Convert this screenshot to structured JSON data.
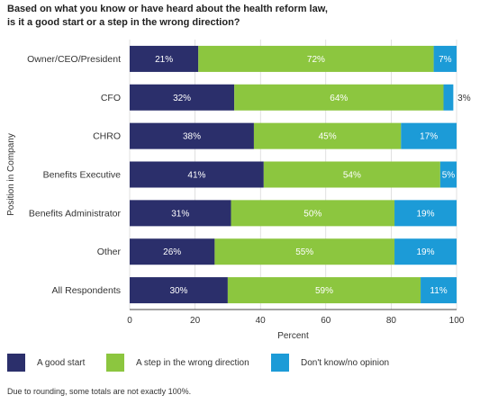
{
  "title_line1": "Based on what you know or have heard about the health reform law,",
  "title_line2": "is it a good start or a step in the wrong direction?",
  "footnote": "Due to rounding, some totals are not exactly 100%.",
  "colors": {
    "good": "#2b2f6b",
    "wrong": "#8cc63f",
    "dontknow": "#1c9bd7",
    "grid": "#cccccc",
    "axis": "#444444"
  },
  "chart_data": {
    "type": "bar",
    "orientation": "horizontal",
    "stacked": true,
    "categories": [
      "Owner/CEO/President",
      "CFO",
      "CHRO",
      "Benefits Executive",
      "Benefits Administrator",
      "Other",
      "All Respondents"
    ],
    "series": [
      {
        "name": "A good start",
        "color": "#2b2f6b",
        "values": [
          21,
          32,
          38,
          41,
          31,
          26,
          30
        ]
      },
      {
        "name": "A step in the wrong direction",
        "color": "#8cc63f",
        "values": [
          72,
          64,
          45,
          54,
          50,
          55,
          59
        ]
      },
      {
        "name": "Don't know/no opinion",
        "color": "#1c9bd7",
        "values": [
          7,
          3,
          17,
          5,
          19,
          19,
          11
        ]
      }
    ],
    "xlabel": "Percent",
    "ylabel": "Position in Company",
    "xlim": [
      0,
      100
    ],
    "xticks": [
      0,
      20,
      40,
      60,
      80,
      100
    ],
    "grid": true,
    "legend_position": "bottom"
  }
}
